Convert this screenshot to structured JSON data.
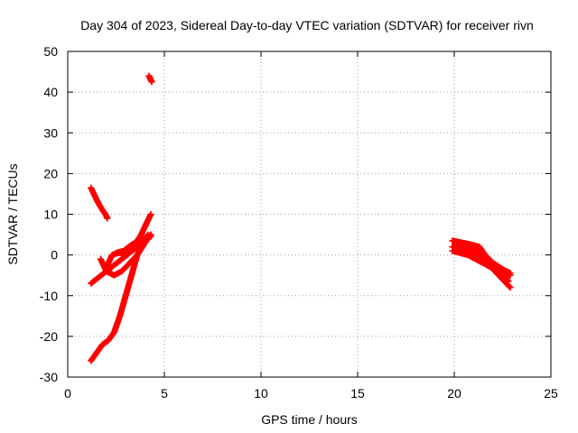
{
  "chart_data": {
    "type": "scatter",
    "title": "Day 304 of 2023, Sidereal Day-to-day VTEC variation (SDTVAR) for receiver rivn",
    "xlabel": "GPS time / hours",
    "ylabel": "SDTVAR / TECUs",
    "xlim": [
      0,
      25
    ],
    "ylim": [
      -30,
      50
    ],
    "x_ticks": [
      0,
      5,
      10,
      15,
      20,
      25
    ],
    "y_ticks": [
      -30,
      -20,
      -10,
      0,
      10,
      20,
      30,
      40,
      50
    ],
    "x_tick_labels": [
      "0",
      "5",
      "10",
      "15",
      "20",
      "25"
    ],
    "y_tick_labels": [
      "-30",
      "-20",
      "-10",
      "0",
      "10",
      "20",
      "30",
      "40",
      "50"
    ],
    "grid": true,
    "marker": "plus",
    "color": "#ff0000",
    "series": [
      {
        "x": [
          4.2,
          4.25,
          4.3,
          4.35
        ],
        "y": [
          44,
          43.5,
          43,
          42.5
        ]
      },
      {
        "x": [
          1.2,
          1.35,
          1.5,
          1.65,
          1.8,
          1.95,
          2.05
        ],
        "y": [
          16.5,
          15,
          13.5,
          12.2,
          11,
          10,
          9
        ]
      },
      {
        "x": [
          1.2,
          1.5,
          1.8,
          2.1,
          2.4,
          2.7,
          3.0,
          3.3,
          3.6,
          3.9,
          4.15
        ],
        "y": [
          -26,
          -24,
          -22,
          -21,
          -19,
          -15,
          -10,
          -5,
          0,
          3,
          5
        ]
      },
      {
        "x": [
          1.2,
          1.6,
          2.0,
          2.4,
          2.8,
          3.2,
          3.6,
          4.0,
          4.3
        ],
        "y": [
          -7,
          -5.5,
          -4,
          -2.5,
          -1,
          0.5,
          2,
          3.5,
          5
        ]
      },
      {
        "x": [
          1.7,
          2.0,
          2.4,
          2.8,
          3.2,
          3.6,
          4.0,
          4.3
        ],
        "y": [
          -1,
          -4,
          -5,
          -4,
          -2,
          0,
          3,
          5
        ]
      },
      {
        "x": [
          2.0,
          2.3,
          2.6,
          3.0,
          3.4,
          3.8,
          4.1,
          4.3
        ],
        "y": [
          -3,
          0,
          0.5,
          0.5,
          2,
          5,
          8,
          10
        ]
      },
      {
        "x": [
          2.5,
          2.9,
          3.3,
          3.7,
          4.0,
          4.3
        ],
        "y": [
          0.5,
          1,
          2.5,
          3.5,
          4,
          4.5
        ]
      },
      {
        "x": [
          19.9,
          20.3,
          20.7,
          21.1,
          21.5,
          21.9,
          22.3,
          22.7,
          22.9
        ],
        "y": [
          1,
          0.5,
          0,
          -1,
          -2,
          -3,
          -5,
          -7,
          -8
        ]
      },
      {
        "x": [
          19.9,
          20.3,
          20.7,
          21.1,
          21.4,
          21.7,
          22.1,
          22.5,
          22.9
        ],
        "y": [
          2,
          1.5,
          1,
          0.5,
          -1,
          -2.5,
          -3.5,
          -4.5,
          -5
        ]
      },
      {
        "x": [
          19.9,
          20.4,
          20.9,
          21.3,
          21.6,
          22.0,
          22.5,
          22.9
        ],
        "y": [
          3.5,
          3,
          2.5,
          2,
          0,
          -2,
          -3.5,
          -4.5
        ]
      },
      {
        "x": [
          20.2,
          20.7,
          21.2,
          21.6,
          22.0,
          22.4,
          22.8
        ],
        "y": [
          2.8,
          2.2,
          1.2,
          -0.5,
          -2,
          -4,
          -6.5
        ]
      }
    ]
  }
}
